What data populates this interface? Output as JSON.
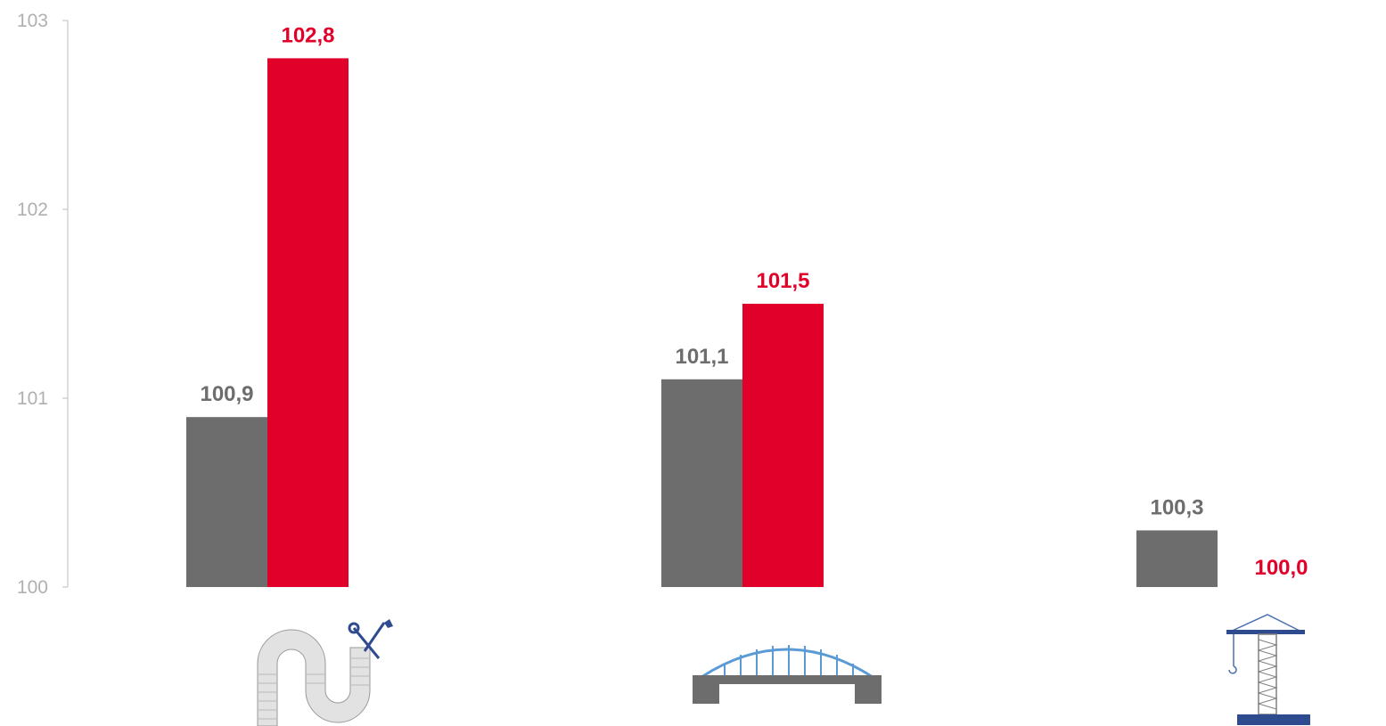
{
  "chart_data": {
    "type": "bar",
    "categories": [
      "",
      "",
      ""
    ],
    "category_icons": [
      "pipe-repair-icon",
      "bridge-icon",
      "construction-crane-icon"
    ],
    "series": [
      {
        "values": [
          100.9,
          101.1,
          100.3
        ],
        "labels": [
          "100,9",
          "101,1",
          "100,3"
        ],
        "color": "#6d6d6d"
      },
      {
        "values": [
          102.8,
          101.5,
          100.0
        ],
        "labels": [
          "102,8",
          "101,5",
          "100,0"
        ],
        "color": "#e1002a"
      }
    ],
    "ylim": [
      100,
      103
    ],
    "yticks": [
      "100",
      "101",
      "102",
      "103"
    ],
    "title": "",
    "xlabel": "",
    "ylabel": "",
    "grid": false,
    "legend": "none"
  }
}
